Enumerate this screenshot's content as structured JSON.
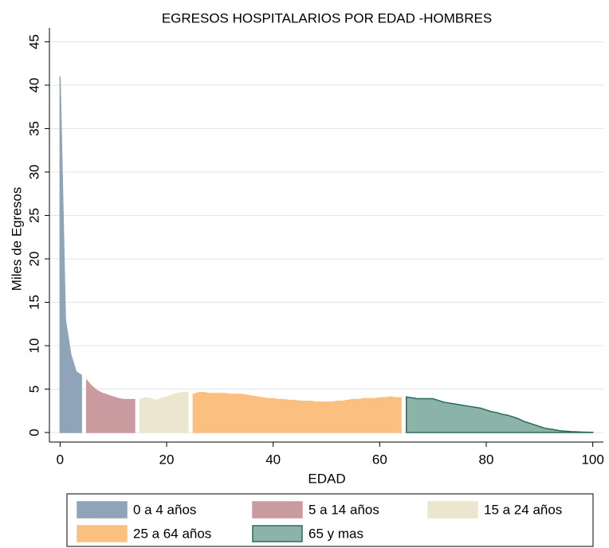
{
  "chart_data": {
    "type": "area",
    "title": "EGRESOS HOSPITALARIOS POR EDAD -HOMBRES",
    "xlabel": "EDAD",
    "ylabel": "Miles de Egresos",
    "xlim": [
      -2,
      102
    ],
    "ylim": [
      -1.1,
      46.6
    ],
    "xticks": [
      0,
      20,
      40,
      60,
      80,
      100
    ],
    "yticks": [
      0,
      5,
      10,
      15,
      20,
      25,
      30,
      35,
      40,
      45
    ],
    "grid": true,
    "legend": "bottom",
    "series": [
      {
        "name": "0 a 4 años",
        "color": "#8fa3b9",
        "edge": "#8fa3b9",
        "x": [
          0,
          1,
          2,
          3,
          4
        ],
        "values": [
          41,
          13,
          9,
          7,
          6.6
        ]
      },
      {
        "name": "5 a 14 años",
        "color": "#c99a9e",
        "edge": "#c99a9e",
        "x": [
          5,
          6,
          7,
          8,
          9,
          10,
          11,
          12,
          13,
          14
        ],
        "values": [
          6,
          5.3,
          4.8,
          4.5,
          4.3,
          4.1,
          3.9,
          3.8,
          3.8,
          3.8
        ]
      },
      {
        "name": "15 a 24 años",
        "color": "#ebe6cd",
        "edge": "#ebe6cd",
        "x": [
          15,
          16,
          17,
          18,
          19,
          20,
          21,
          22,
          23,
          24
        ],
        "values": [
          3.8,
          4.0,
          3.9,
          3.7,
          3.9,
          4.1,
          4.3,
          4.5,
          4.6,
          4.6
        ]
      },
      {
        "name": "25 a 64 años",
        "color": "#fbbf80",
        "edge": "#fbbf80",
        "x": [
          25,
          26,
          27,
          28,
          29,
          30,
          31,
          32,
          33,
          34,
          35,
          36,
          37,
          38,
          39,
          40,
          41,
          42,
          43,
          44,
          45,
          46,
          47,
          48,
          49,
          50,
          51,
          52,
          53,
          54,
          55,
          56,
          57,
          58,
          59,
          60,
          61,
          62,
          63,
          64
        ],
        "values": [
          4.4,
          4.6,
          4.6,
          4.5,
          4.5,
          4.5,
          4.5,
          4.4,
          4.4,
          4.4,
          4.3,
          4.2,
          4.1,
          4.0,
          3.9,
          3.9,
          3.8,
          3.8,
          3.7,
          3.7,
          3.6,
          3.6,
          3.6,
          3.5,
          3.5,
          3.5,
          3.5,
          3.6,
          3.6,
          3.7,
          3.8,
          3.8,
          3.9,
          3.9,
          3.9,
          4.0,
          4.0,
          4.1,
          4.0,
          4.0
        ]
      },
      {
        "name": "65 y mas",
        "color": "#8bb3a8",
        "edge": "#2d6a5a",
        "x": [
          65,
          66,
          67,
          68,
          69,
          70,
          71,
          72,
          73,
          74,
          75,
          76,
          77,
          78,
          79,
          80,
          81,
          82,
          83,
          84,
          85,
          86,
          87,
          88,
          89,
          90,
          91,
          92,
          93,
          94,
          95,
          96,
          97,
          98,
          99,
          100
        ],
        "values": [
          4.1,
          4.0,
          3.9,
          3.9,
          3.9,
          3.9,
          3.7,
          3.5,
          3.4,
          3.3,
          3.2,
          3.1,
          3.0,
          2.9,
          2.8,
          2.6,
          2.4,
          2.3,
          2.1,
          2.0,
          1.8,
          1.6,
          1.3,
          1.1,
          0.9,
          0.7,
          0.5,
          0.4,
          0.3,
          0.2,
          0.15,
          0.1,
          0.08,
          0.05,
          0.03,
          0.02
        ]
      }
    ]
  }
}
